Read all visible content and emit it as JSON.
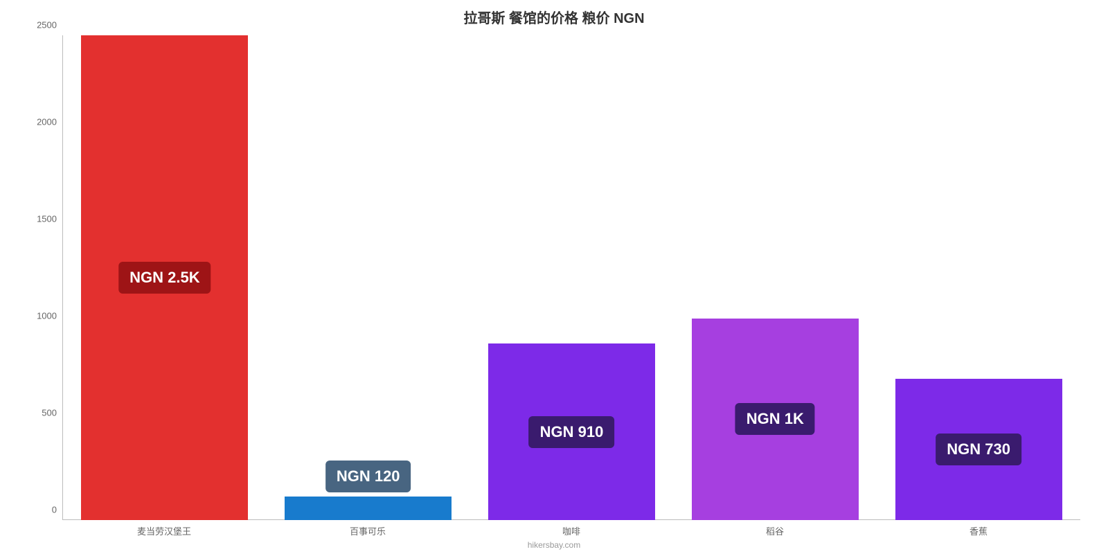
{
  "chart": {
    "type": "bar",
    "title": "拉哥斯 餐馆的价格 粮价 NGN",
    "title_fontsize": 20,
    "title_color": "#333333",
    "background_color": "#ffffff",
    "axis_color": "#bbbbbb",
    "tick_font_color": "#666666",
    "tick_fontsize": 13,
    "ylim": [
      0,
      2500
    ],
    "ytick_step": 500,
    "yticks": [
      0,
      500,
      1000,
      1500,
      2000,
      2500
    ],
    "categories": [
      "麦当劳汉堡王",
      "百事可乐",
      "咖啡",
      "稻谷",
      "香蕉"
    ],
    "values": [
      2500,
      120,
      910,
      1040,
      730
    ],
    "value_labels": [
      "NGN 2.5K",
      "NGN 120",
      "NGN 910",
      "NGN 1K",
      "NGN 730"
    ],
    "bar_colors": [
      "#e3302f",
      "#187bcd",
      "#7d2ae8",
      "#a63fe0",
      "#7d2ae8"
    ],
    "label_box_bg": [
      "#9e1416",
      "#486581",
      "#3a1b6e",
      "#3a1b6e",
      "#3a1b6e"
    ],
    "label_text_color": "#ffffff",
    "label_fontsize": 22,
    "bar_width_pct": 82,
    "footer": "hikersbay.com",
    "footer_color": "#999999",
    "footer_fontsize": 12
  }
}
